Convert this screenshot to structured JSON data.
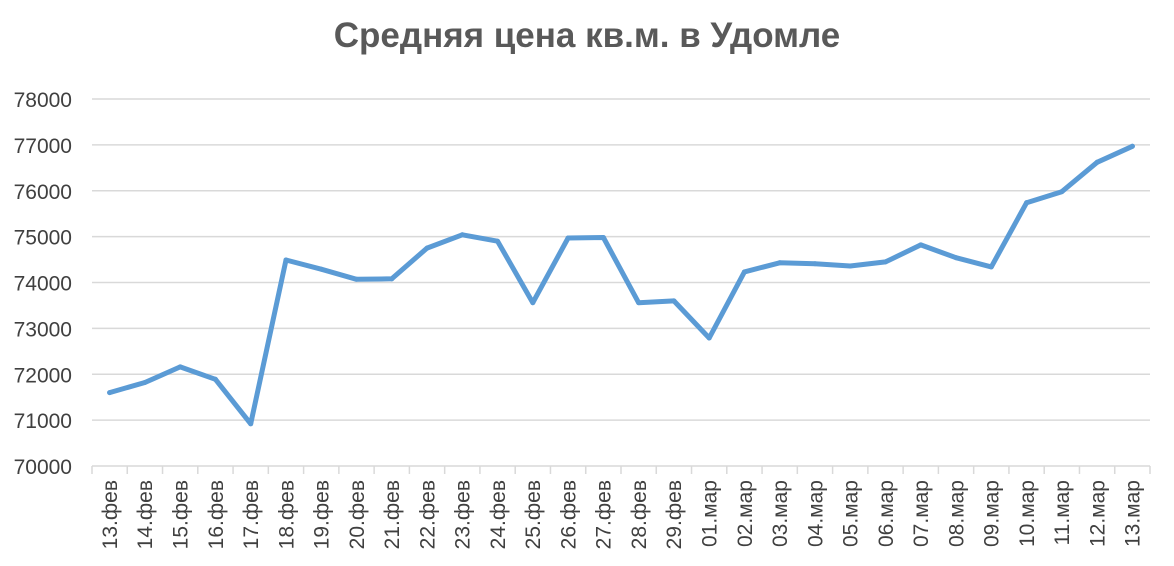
{
  "chart_data": {
    "type": "line",
    "title": "Средняя цена кв.м. в Удомле",
    "xlabel": "",
    "ylabel": "",
    "ylim": [
      70000,
      78000
    ],
    "yticks": [
      "70000",
      "71000",
      "72000",
      "73000",
      "74000",
      "75000",
      "76000",
      "77000",
      "78000"
    ],
    "grid": true,
    "legend": "none",
    "categories": [
      "13.фев",
      "14.фев",
      "15.фев",
      "16.фев",
      "17.фев",
      "18.фев",
      "19.фев",
      "20.фев",
      "21.фев",
      "22.фев",
      "23.фев",
      "24.фев",
      "25.фев",
      "26.фев",
      "27.фев",
      "28.фев",
      "29.фев",
      "01.мар",
      "02.мар",
      "03.мар",
      "04.мар",
      "05.мар",
      "06.мар",
      "07.мар",
      "08.мар",
      "09.мар",
      "10.мар",
      "11.мар",
      "12.мар",
      "13.мар"
    ],
    "series": [
      {
        "color": "#5b9bd5",
        "values": [
          71600,
          71820,
          72160,
          71890,
          70920,
          74490,
          74290,
          74070,
          74080,
          74750,
          75040,
          74900,
          73560,
          74970,
          74980,
          73560,
          73600,
          72790,
          74230,
          74430,
          74410,
          74360,
          74450,
          74820,
          74540,
          74340,
          75740,
          75980,
          76620,
          76970
        ]
      }
    ],
    "colors": {
      "gridline": "#d9d9d9",
      "axis": "#d9d9d9",
      "text": "#404040",
      "title": "#595959"
    }
  }
}
